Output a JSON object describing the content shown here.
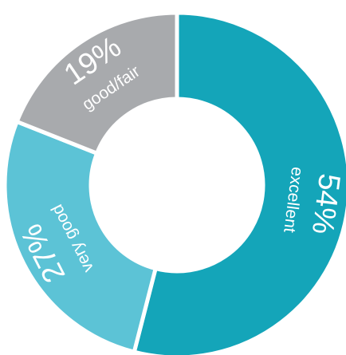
{
  "chart_data": {
    "type": "donut",
    "categories": [
      "excellent",
      "very good",
      "good/fair"
    ],
    "values": [
      54,
      27,
      19
    ],
    "value_labels": [
      "54%",
      "27%",
      "19%"
    ],
    "colors": [
      "#14a5b9",
      "#5cc3d6",
      "#a8aaad"
    ]
  }
}
